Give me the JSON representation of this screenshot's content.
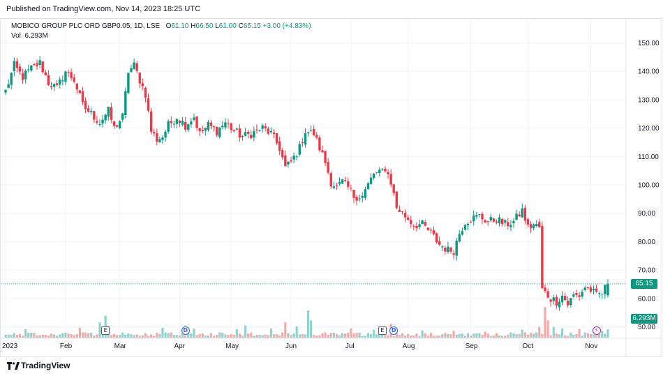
{
  "published": "Published on TradingView.com, Nov 14, 2023 18:25 UTC",
  "legend": {
    "symbol": "MOBICO GROUP PLC ORD GBP0.05, 1D, LSE",
    "o_label": "O",
    "o_value": "61.10",
    "h_label": "H",
    "h_value": "66.50",
    "l_label": "L",
    "l_value": "61.00",
    "c_label": "C",
    "c_value": "65.15",
    "change": "+3.00 (+4.83%)",
    "vol_label": "Vol",
    "vol_value": "6.293M"
  },
  "colors": {
    "up": "#089981",
    "down": "#f23645",
    "up_vol": "#92d2cc",
    "down_vol": "#f7a9a7",
    "grid": "#f0f3fa"
  },
  "price_tag": "65.15",
  "vol_tag": "6.293M",
  "events": [
    {
      "type": "E",
      "label": "E",
      "icon": "earnings-icon",
      "date_index": 35
    },
    {
      "type": "D",
      "label": "D",
      "icon": "dividend-icon",
      "date_index": 63
    },
    {
      "type": "E",
      "label": "E",
      "icon": "earnings-icon",
      "date_index": 132
    },
    {
      "type": "D",
      "label": "D",
      "icon": "dividend-icon",
      "date_index": 136
    },
    {
      "type": "S",
      "label": "⚡",
      "icon": "split-icon",
      "date_index": 207
    }
  ],
  "footer": {
    "brand": "TradingView",
    "icon": "tradingview-logo-icon"
  },
  "chart_data": {
    "type": "candlestick",
    "title": "MOBICO GROUP PLC ORD GBP0.05, 1D, LSE",
    "y_ticks": [
      150.0,
      140.0,
      130.0,
      120.0,
      110.0,
      100.0,
      90.0,
      80.0,
      70.0,
      60.0,
      50.0
    ],
    "ylim": [
      47.5,
      155.0
    ],
    "x_ticks": [
      {
        "label": "2023",
        "index": 0
      },
      {
        "label": "Feb",
        "index": 21
      },
      {
        "label": "Mar",
        "index": 40
      },
      {
        "label": "Apr",
        "index": 61
      },
      {
        "label": "May",
        "index": 79
      },
      {
        "label": "Jun",
        "index": 100
      },
      {
        "label": "Jul",
        "index": 121
      },
      {
        "label": "Aug",
        "index": 141
      },
      {
        "label": "Sep",
        "index": 163
      },
      {
        "label": "Oct",
        "index": 183
      },
      {
        "label": "Nov",
        "index": 205
      }
    ],
    "last_close": 65.15,
    "total_days": 212,
    "anchors": [
      [
        0,
        133
      ],
      [
        3,
        142
      ],
      [
        6,
        138
      ],
      [
        9,
        141
      ],
      [
        12,
        143
      ],
      [
        15,
        136
      ],
      [
        18,
        134
      ],
      [
        21,
        140
      ],
      [
        24,
        137
      ],
      [
        27,
        128
      ],
      [
        30,
        125
      ],
      [
        33,
        122
      ],
      [
        36,
        126
      ],
      [
        38,
        120
      ],
      [
        41,
        124
      ],
      [
        43,
        140
      ],
      [
        45,
        142
      ],
      [
        47,
        137
      ],
      [
        49,
        132
      ],
      [
        51,
        119
      ],
      [
        53,
        116
      ],
      [
        55,
        117
      ],
      [
        57,
        121
      ],
      [
        60,
        124
      ],
      [
        63,
        121
      ],
      [
        66,
        124
      ],
      [
        68,
        118
      ],
      [
        71,
        121
      ],
      [
        74,
        119
      ],
      [
        77,
        122
      ],
      [
        80,
        119
      ],
      [
        83,
        117
      ],
      [
        86,
        118
      ],
      [
        90,
        120
      ],
      [
        93,
        118
      ],
      [
        96,
        113
      ],
      [
        98,
        106
      ],
      [
        100,
        108
      ],
      [
        103,
        113
      ],
      [
        105,
        119
      ],
      [
        108,
        118
      ],
      [
        110,
        113
      ],
      [
        112,
        108
      ],
      [
        114,
        101
      ],
      [
        116,
        99
      ],
      [
        118,
        101
      ],
      [
        120,
        99
      ],
      [
        122,
        96
      ],
      [
        125,
        96
      ],
      [
        127,
        100
      ],
      [
        129,
        104
      ],
      [
        131,
        104
      ],
      [
        133,
        106
      ],
      [
        135,
        101
      ],
      [
        137,
        92
      ],
      [
        139,
        90
      ],
      [
        141,
        88
      ],
      [
        143,
        86
      ],
      [
        146,
        86
      ],
      [
        149,
        83
      ],
      [
        152,
        79
      ],
      [
        155,
        77
      ],
      [
        157,
        77
      ],
      [
        159,
        83
      ],
      [
        161,
        87
      ],
      [
        163,
        88
      ],
      [
        166,
        89
      ],
      [
        169,
        87
      ],
      [
        172,
        88
      ],
      [
        175,
        86
      ],
      [
        178,
        87
      ],
      [
        181,
        91
      ],
      [
        183,
        85
      ],
      [
        185,
        86
      ],
      [
        187,
        85
      ],
      [
        188,
        63
      ],
      [
        189,
        62
      ],
      [
        191,
        60
      ],
      [
        193,
        59
      ],
      [
        195,
        61
      ],
      [
        197,
        58
      ],
      [
        199,
        61
      ],
      [
        201,
        61
      ],
      [
        203,
        64
      ],
      [
        205,
        63
      ],
      [
        207,
        61
      ],
      [
        209,
        62
      ],
      [
        211,
        65.15
      ]
    ],
    "volume_ylim": [
      0,
      30000000
    ],
    "last_volume": 6293000,
    "volume_spikes": [
      [
        7,
        6.5
      ],
      [
        26,
        7.5
      ],
      [
        33,
        11.5
      ],
      [
        35,
        16.5
      ],
      [
        36,
        9
      ],
      [
        55,
        7.4
      ],
      [
        66,
        6.8
      ],
      [
        81,
        6.2
      ],
      [
        84,
        9.1
      ],
      [
        93,
        7
      ],
      [
        98,
        11.7
      ],
      [
        102,
        8.5
      ],
      [
        106,
        20.5
      ],
      [
        107,
        13
      ],
      [
        121,
        7
      ],
      [
        129,
        6
      ],
      [
        131,
        7
      ],
      [
        135,
        10.5
      ],
      [
        137,
        7
      ],
      [
        146,
        5.5
      ],
      [
        157,
        5
      ],
      [
        168,
        4.5
      ],
      [
        181,
        6
      ],
      [
        187,
        8
      ],
      [
        189,
        23
      ],
      [
        190,
        13
      ],
      [
        192,
        8
      ],
      [
        195,
        7
      ],
      [
        201,
        6.5
      ],
      [
        209,
        5
      ],
      [
        211,
        6.3
      ]
    ]
  }
}
